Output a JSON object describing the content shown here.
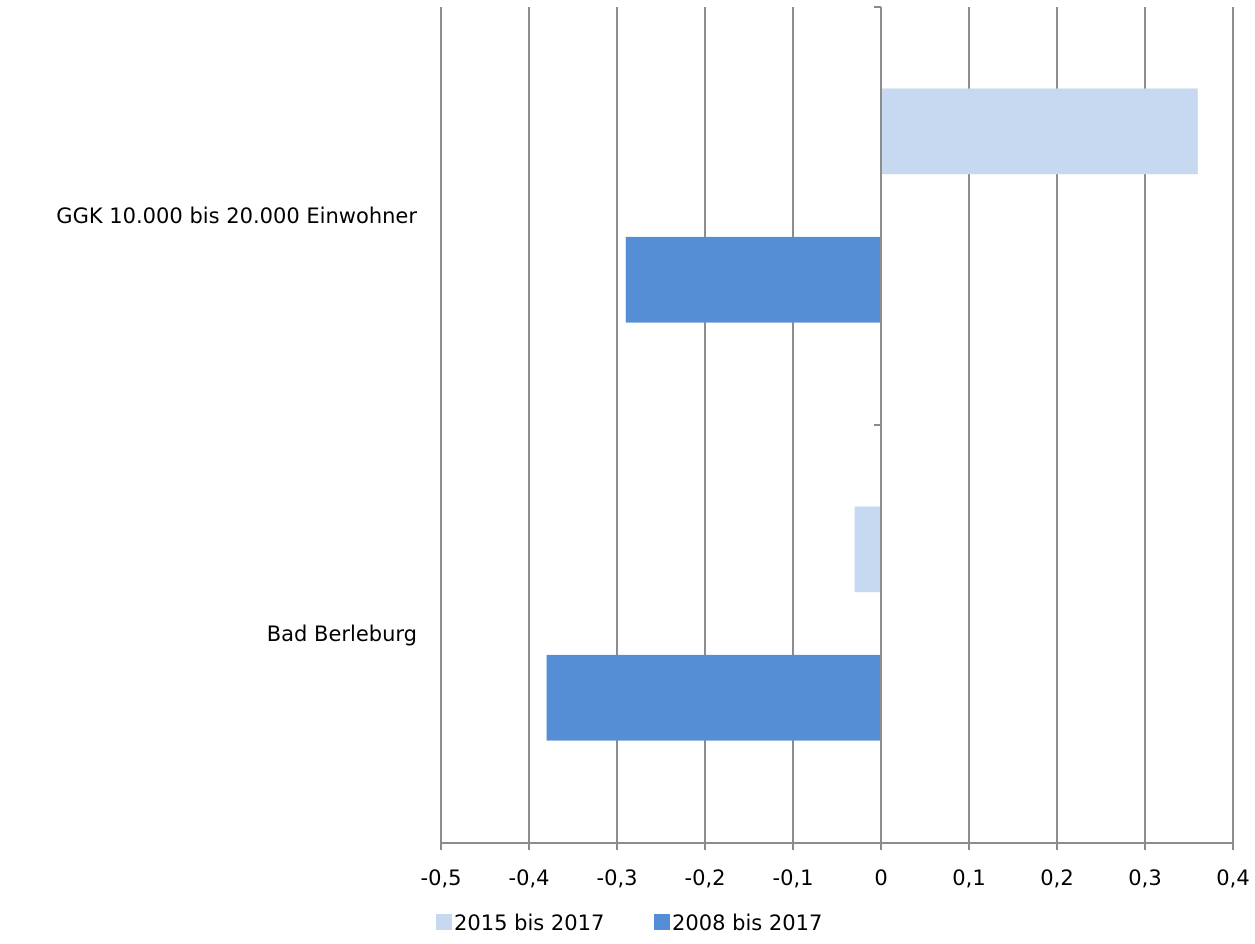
{
  "chart_data": {
    "type": "bar",
    "orientation": "horizontal",
    "categories": [
      "GGK 10.000 bis 20.000 Einwohner",
      "Bad Berleburg"
    ],
    "series": [
      {
        "name": "2015 bis 2017",
        "values": [
          0.36,
          -0.03
        ],
        "color": "#c6d9f1"
      },
      {
        "name": "2008 bis 2017",
        "values": [
          -0.29,
          -0.38
        ],
        "color": "#558ed5"
      }
    ],
    "xlim": [
      -0.5,
      0.4
    ],
    "xticks": [
      -0.5,
      -0.4,
      -0.3,
      -0.2,
      -0.1,
      0,
      0.1,
      0.2,
      0.3,
      0.4
    ],
    "xtick_labels": [
      "-0,5",
      "-0,4",
      "-0,3",
      "-0,2",
      "-0,1",
      "0",
      "0,1",
      "0,2",
      "0,3",
      "0,4"
    ],
    "grid": true,
    "legend_position": "bottom"
  }
}
